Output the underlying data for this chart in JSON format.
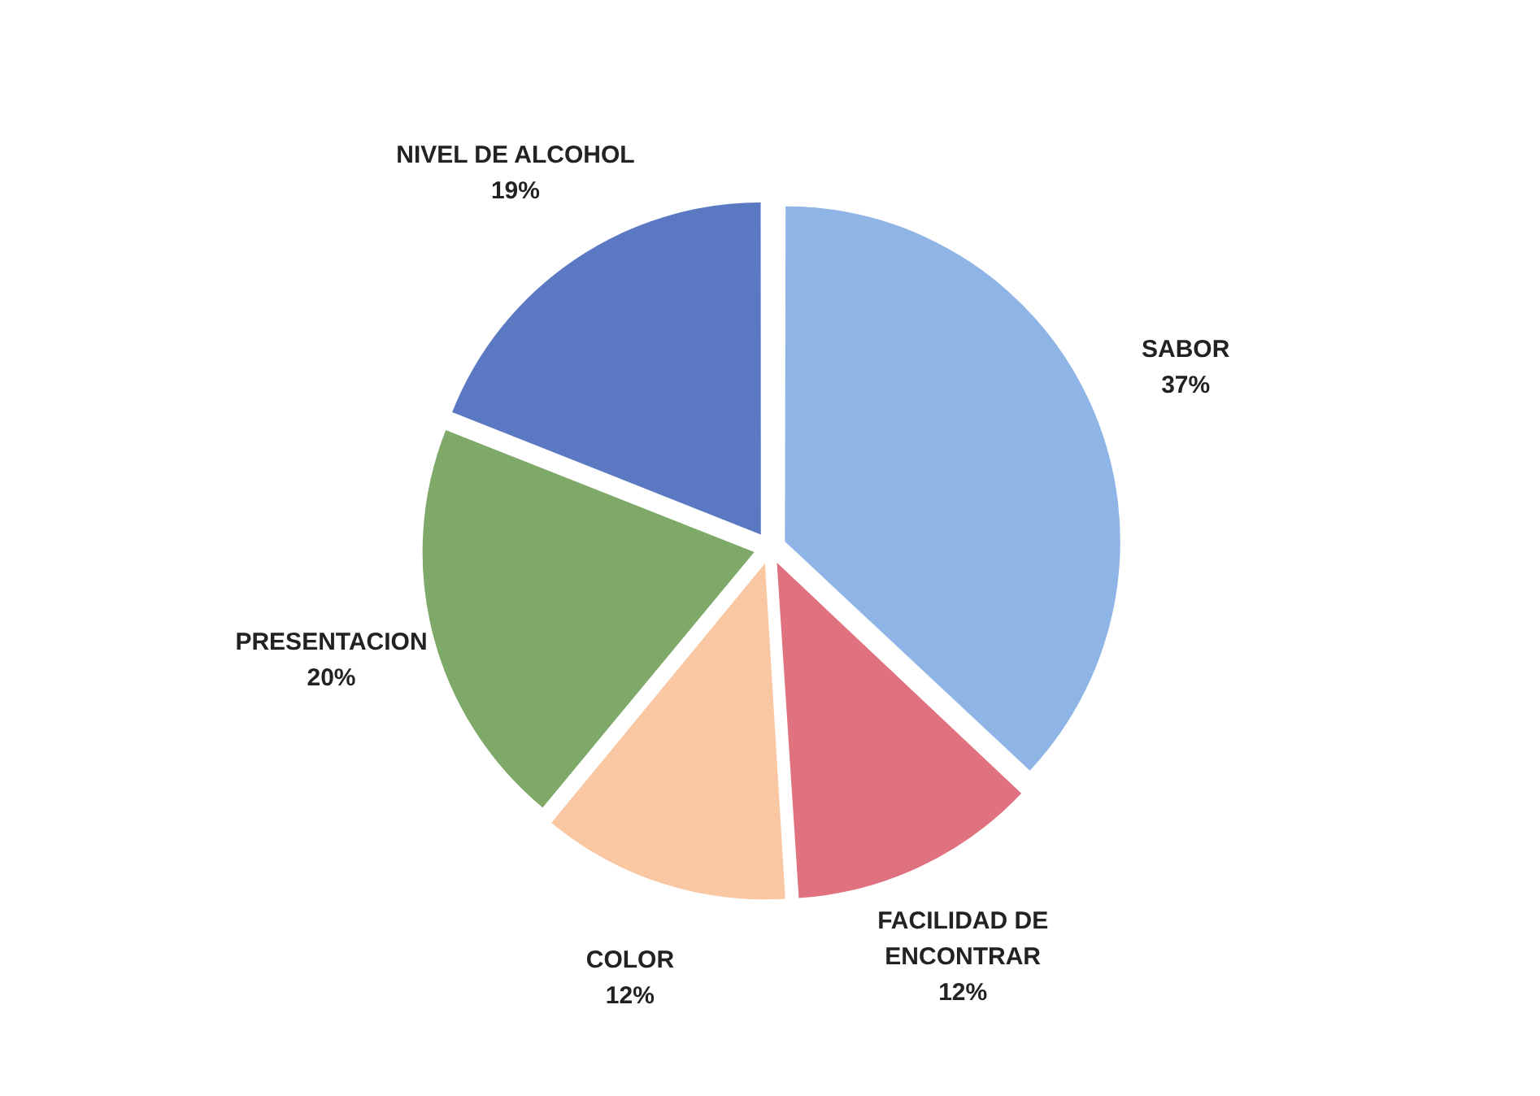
{
  "chart_data": {
    "type": "pie",
    "categories": [
      "SABOR",
      "FACILIDAD DE ENCONTRAR",
      "COLOR",
      "PRESENTACION",
      "NIVEL DE ALCOHOL"
    ],
    "values": [
      37,
      12,
      12,
      20,
      19
    ],
    "colors": [
      "#8fb4e6",
      "#e0727f",
      "#f9c7a2",
      "#7ea968",
      "#5b78c2"
    ],
    "value_labels": [
      "37%",
      "12%",
      "12%",
      "20%",
      "19%"
    ],
    "legend": false
  }
}
